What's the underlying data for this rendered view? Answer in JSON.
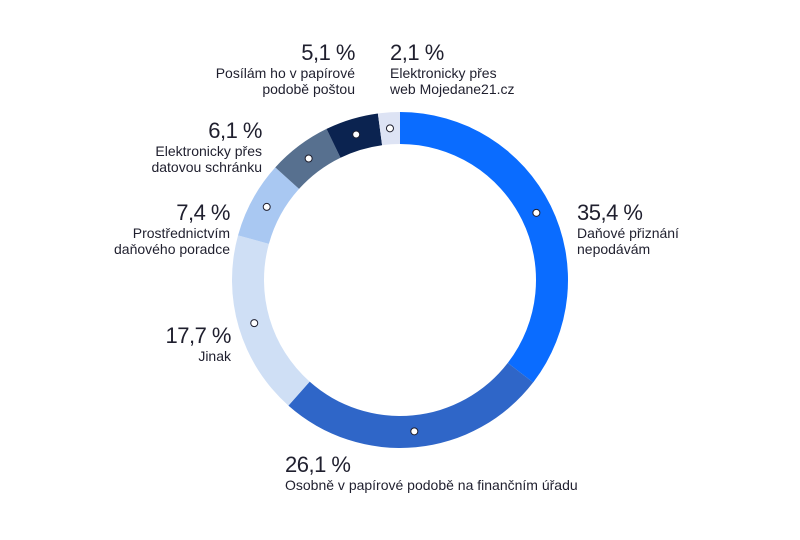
{
  "chart_data": {
    "type": "pie",
    "variant": "donut",
    "colors_note": "clockwise from top",
    "slices": [
      {
        "label": "Daňové přiznání nepodávám",
        "value": 35.4,
        "value_label": "35,4 %",
        "line1": "Daňové přiznání",
        "line2": "nepodávám",
        "color": "#0a6cff"
      },
      {
        "label": "Osobně v papírové podobě na finančním úřadu",
        "value": 26.1,
        "value_label": "26,1 %",
        "line1": "Osobně v papírové podobě na finančním úřadu",
        "line2": "",
        "color": "#2f66c8"
      },
      {
        "label": "Jinak",
        "value": 17.7,
        "value_label": "17,7 %",
        "line1": "Jinak",
        "line2": "",
        "color": "#cfdff5"
      },
      {
        "label": "Prostřednictvím daňového poradce",
        "value": 7.4,
        "value_label": "7,4 %",
        "line1": "Prostřednictvím",
        "line2": "daňového poradce",
        "color": "#a9c8f2"
      },
      {
        "label": "Elektronicky přes datovou schránku",
        "value": 6.1,
        "value_label": "6,1 %",
        "line1": "Elektronicky přes",
        "line2": "datovou schránku",
        "color": "#57708f"
      },
      {
        "label": "Posílám ho v papírové podobě poštou",
        "value": 5.1,
        "value_label": "5,1 %",
        "line1": "Posílám ho v papírové",
        "line2": "podobě poštou",
        "color": "#0b2350"
      },
      {
        "label": "Elektronicky přes web Mojedane21.cz",
        "value": 2.1,
        "value_label": "2,1 %",
        "line1": "Elektronicky přes",
        "line2": "web Mojedane21.cz",
        "color": "#dde3f4"
      }
    ]
  }
}
